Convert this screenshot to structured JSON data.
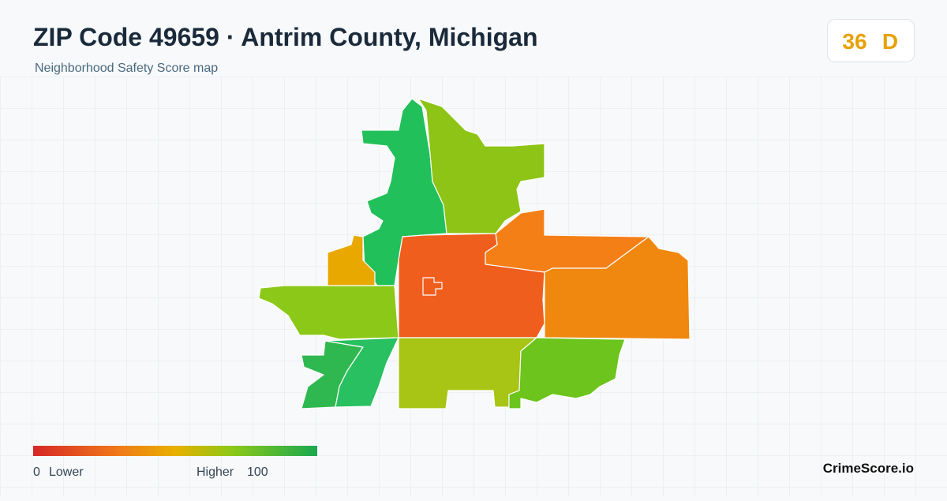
{
  "header": {
    "title": "ZIP Code 49659 · Antrim County, Michigan",
    "subtitle": "Neighborhood Safety Score map"
  },
  "badge": {
    "score": "36",
    "grade": "D"
  },
  "legend": {
    "min": "0",
    "min_label": "Lower",
    "max_label": "Higher",
    "max": "100"
  },
  "brand": "CrimeScore.io"
}
